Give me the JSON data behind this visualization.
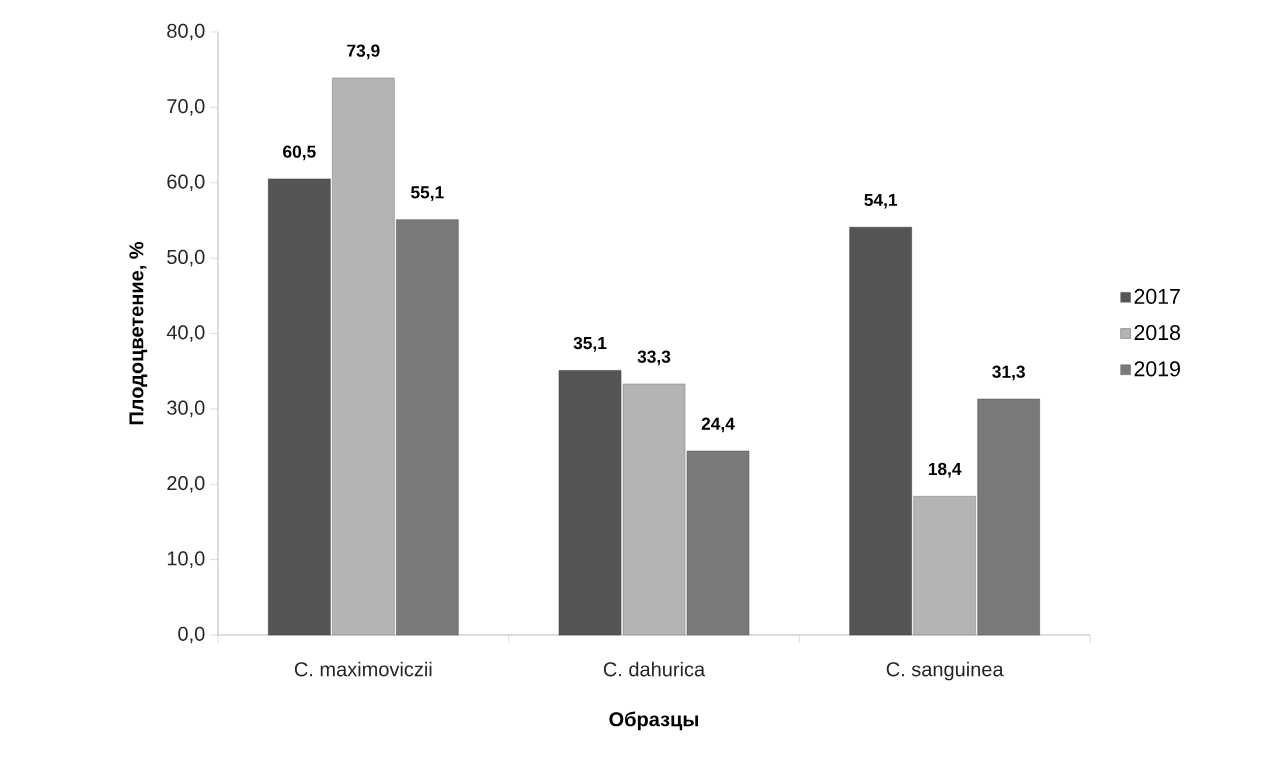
{
  "chart_data": {
    "type": "bar",
    "xlabel": "Образцы",
    "ylabel": "Плодоцветение, %",
    "categories": [
      "C. maximoviczii",
      "C. dahurica",
      "C. sanguinea"
    ],
    "series": [
      {
        "name": "2017",
        "color": "#555555",
        "values": [
          60.5,
          35.1,
          54.1
        ],
        "value_labels": [
          "60,5",
          "35,1",
          "54,1"
        ]
      },
      {
        "name": "2018",
        "color": "#b4b4b4",
        "values": [
          73.9,
          33.3,
          18.4
        ],
        "value_labels": [
          "73,9",
          "33,3",
          "18,4"
        ]
      },
      {
        "name": "2019",
        "color": "#7a7a7a",
        "values": [
          55.1,
          24.4,
          31.3
        ],
        "value_labels": [
          "55,1",
          "24,4",
          "31,3"
        ]
      }
    ],
    "ylim": [
      0,
      80
    ],
    "yticks": [
      {
        "value": 0,
        "label": "0,0"
      },
      {
        "value": 10,
        "label": "10,0"
      },
      {
        "value": 20,
        "label": "20,0"
      },
      {
        "value": 30,
        "label": "30,0"
      },
      {
        "value": 40,
        "label": "40,0"
      },
      {
        "value": 50,
        "label": "50,0"
      },
      {
        "value": 60,
        "label": "60,0"
      },
      {
        "value": 70,
        "label": "70,0"
      },
      {
        "value": 80,
        "label": "80,0"
      }
    ],
    "grid": false,
    "legend": "right"
  }
}
